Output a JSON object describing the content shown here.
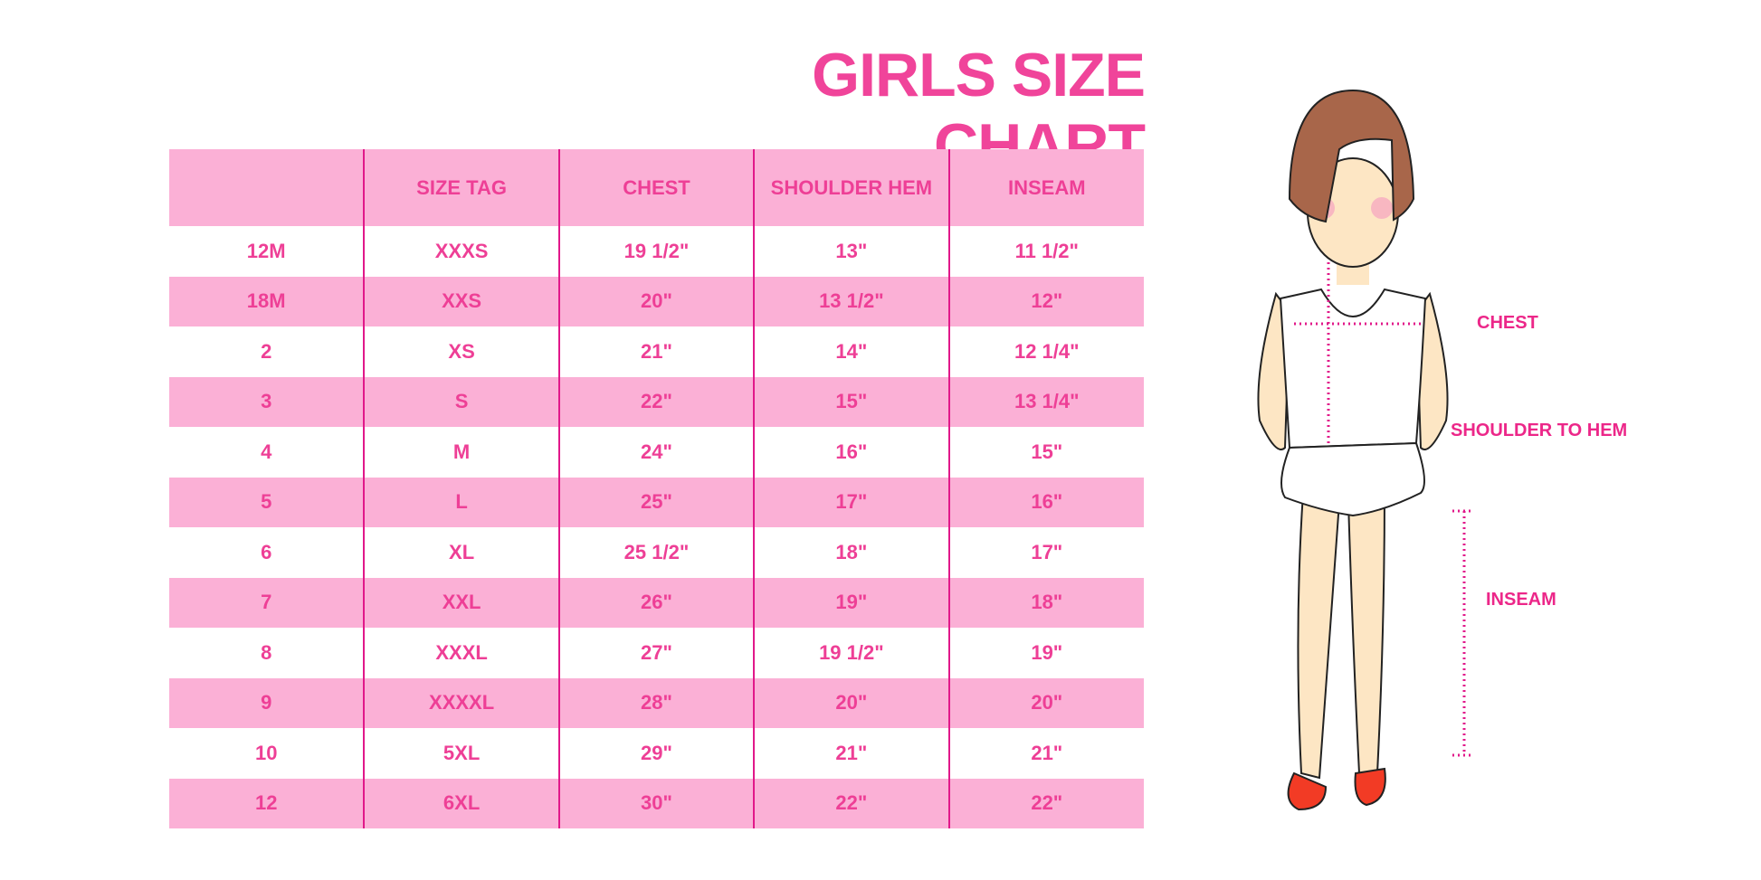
{
  "title": "GIRLS SIZE CHART",
  "colors": {
    "accent": "#f0449a",
    "row_band": "#fbb0d6",
    "divider": "#e1188a"
  },
  "table": {
    "headers": [
      "",
      "SIZE TAG",
      "CHEST",
      "SHOULDER HEM",
      "INSEAM"
    ],
    "rows": [
      [
        "12M",
        "XXXS",
        "19 1/2\"",
        "13\"",
        "11 1/2\""
      ],
      [
        "18M",
        "XXS",
        "20\"",
        "13 1/2\"",
        "12\""
      ],
      [
        "2",
        "XS",
        "21\"",
        "14\"",
        "12 1/4\""
      ],
      [
        "3",
        "S",
        "22\"",
        "15\"",
        "13 1/4\""
      ],
      [
        "4",
        "M",
        "24\"",
        "16\"",
        "15\""
      ],
      [
        "5",
        "L",
        "25\"",
        "17\"",
        "16\""
      ],
      [
        "6",
        "XL",
        "25 1/2\"",
        "18\"",
        "17\""
      ],
      [
        "7",
        "XXL",
        "26\"",
        "19\"",
        "18\""
      ],
      [
        "8",
        "XXXL",
        "27\"",
        "19 1/2\"",
        "19\""
      ],
      [
        "9",
        "XXXXL",
        "28\"",
        "20\"",
        "20\""
      ],
      [
        "10",
        "5XL",
        "29\"",
        "21\"",
        "21\""
      ],
      [
        "12",
        "6XL",
        "30\"",
        "22\"",
        "22\""
      ]
    ]
  },
  "figure": {
    "labels": {
      "chest": "CHEST",
      "shoulder": "SHOULDER TO HEM",
      "inseam": "INSEAM"
    }
  }
}
